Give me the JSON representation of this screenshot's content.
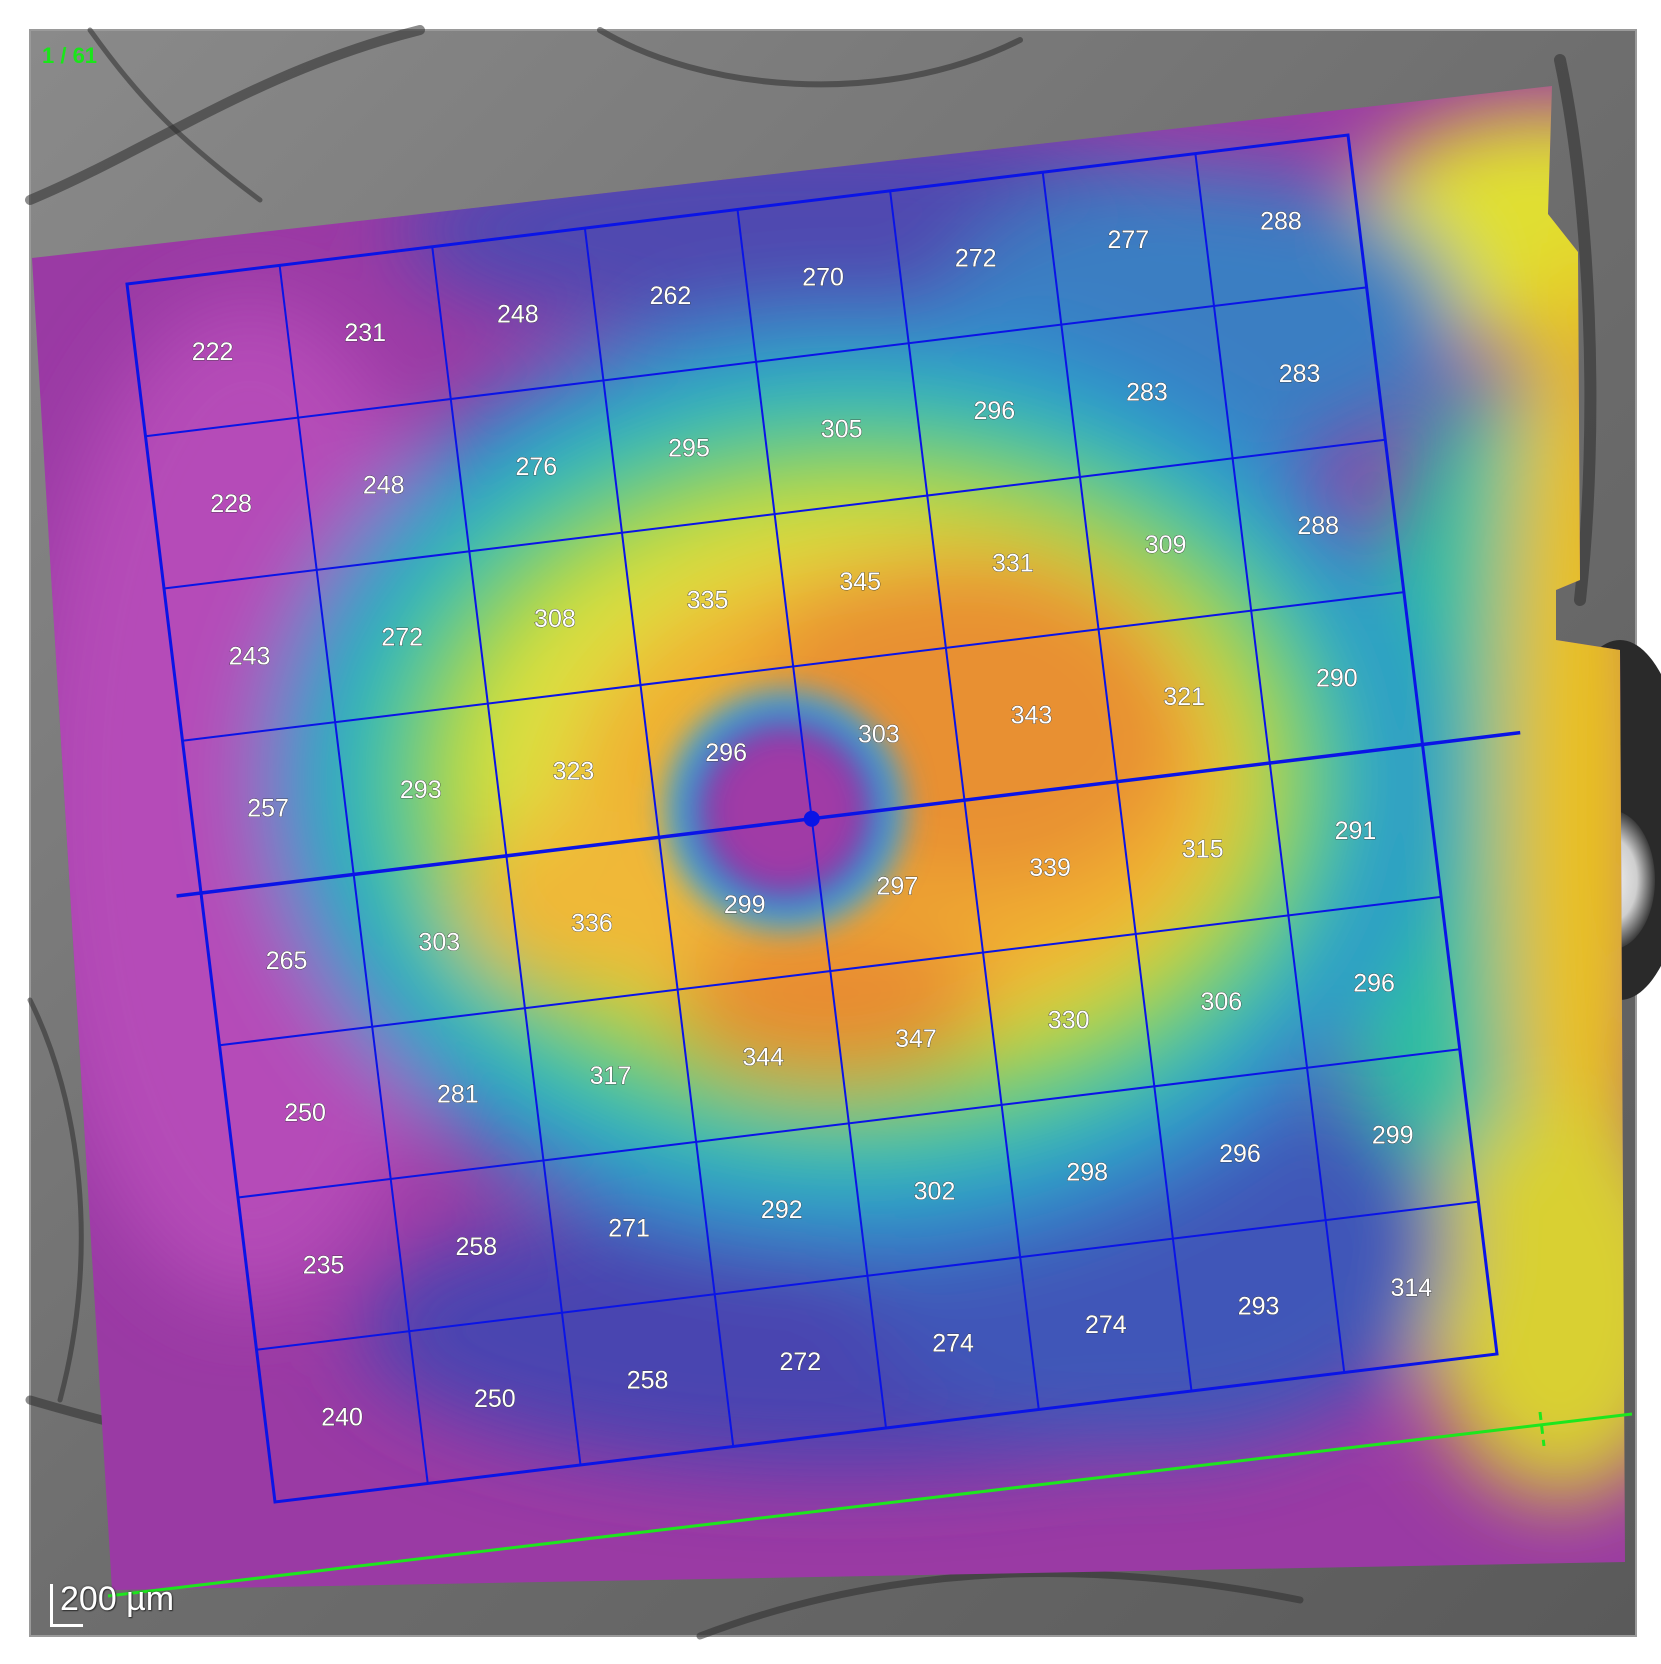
{
  "frame_counter": "1 / 61",
  "scale_bar_label": "200 µm",
  "grid": {
    "rows": 8,
    "cols": 8,
    "values": [
      [
        222,
        231,
        248,
        262,
        270,
        272,
        277,
        288
      ],
      [
        228,
        248,
        276,
        295,
        305,
        296,
        283,
        283
      ],
      [
        243,
        272,
        308,
        335,
        345,
        331,
        309,
        288
      ],
      [
        257,
        293,
        323,
        296,
        303,
        343,
        321,
        290
      ],
      [
        265,
        303,
        336,
        299,
        297,
        339,
        315,
        291
      ],
      [
        250,
        281,
        317,
        344,
        347,
        330,
        306,
        296
      ],
      [
        235,
        258,
        271,
        292,
        302,
        298,
        296,
        299
      ],
      [
        240,
        250,
        258,
        272,
        274,
        274,
        293,
        314
      ]
    ]
  },
  "colors": {
    "grid_line": "#0a14e6",
    "scan_line": "#1ee61e",
    "frame_counter": "#19e619",
    "cell_label": "#ffffff"
  }
}
